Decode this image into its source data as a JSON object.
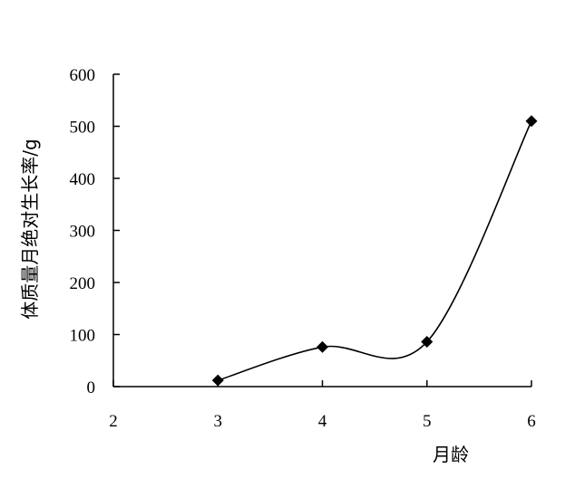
{
  "chart_data": {
    "type": "line",
    "title": "",
    "xlabel": "月龄",
    "ylabel": "体质量月绝对生长率/g",
    "x": [
      3,
      4,
      5,
      6
    ],
    "series": [
      {
        "values": [
          12,
          76,
          86,
          510
        ]
      }
    ],
    "xlim": [
      2,
      6
    ],
    "ylim": [
      0,
      600
    ],
    "xticks": [
      "2",
      "3",
      "4",
      "5",
      "6"
    ],
    "yticks": [
      "0",
      "100",
      "200",
      "300",
      "400",
      "500",
      "600"
    ],
    "smooth": true,
    "marker": "diamond",
    "grid": false,
    "line_color": "#000000",
    "marker_color": "#000000"
  }
}
